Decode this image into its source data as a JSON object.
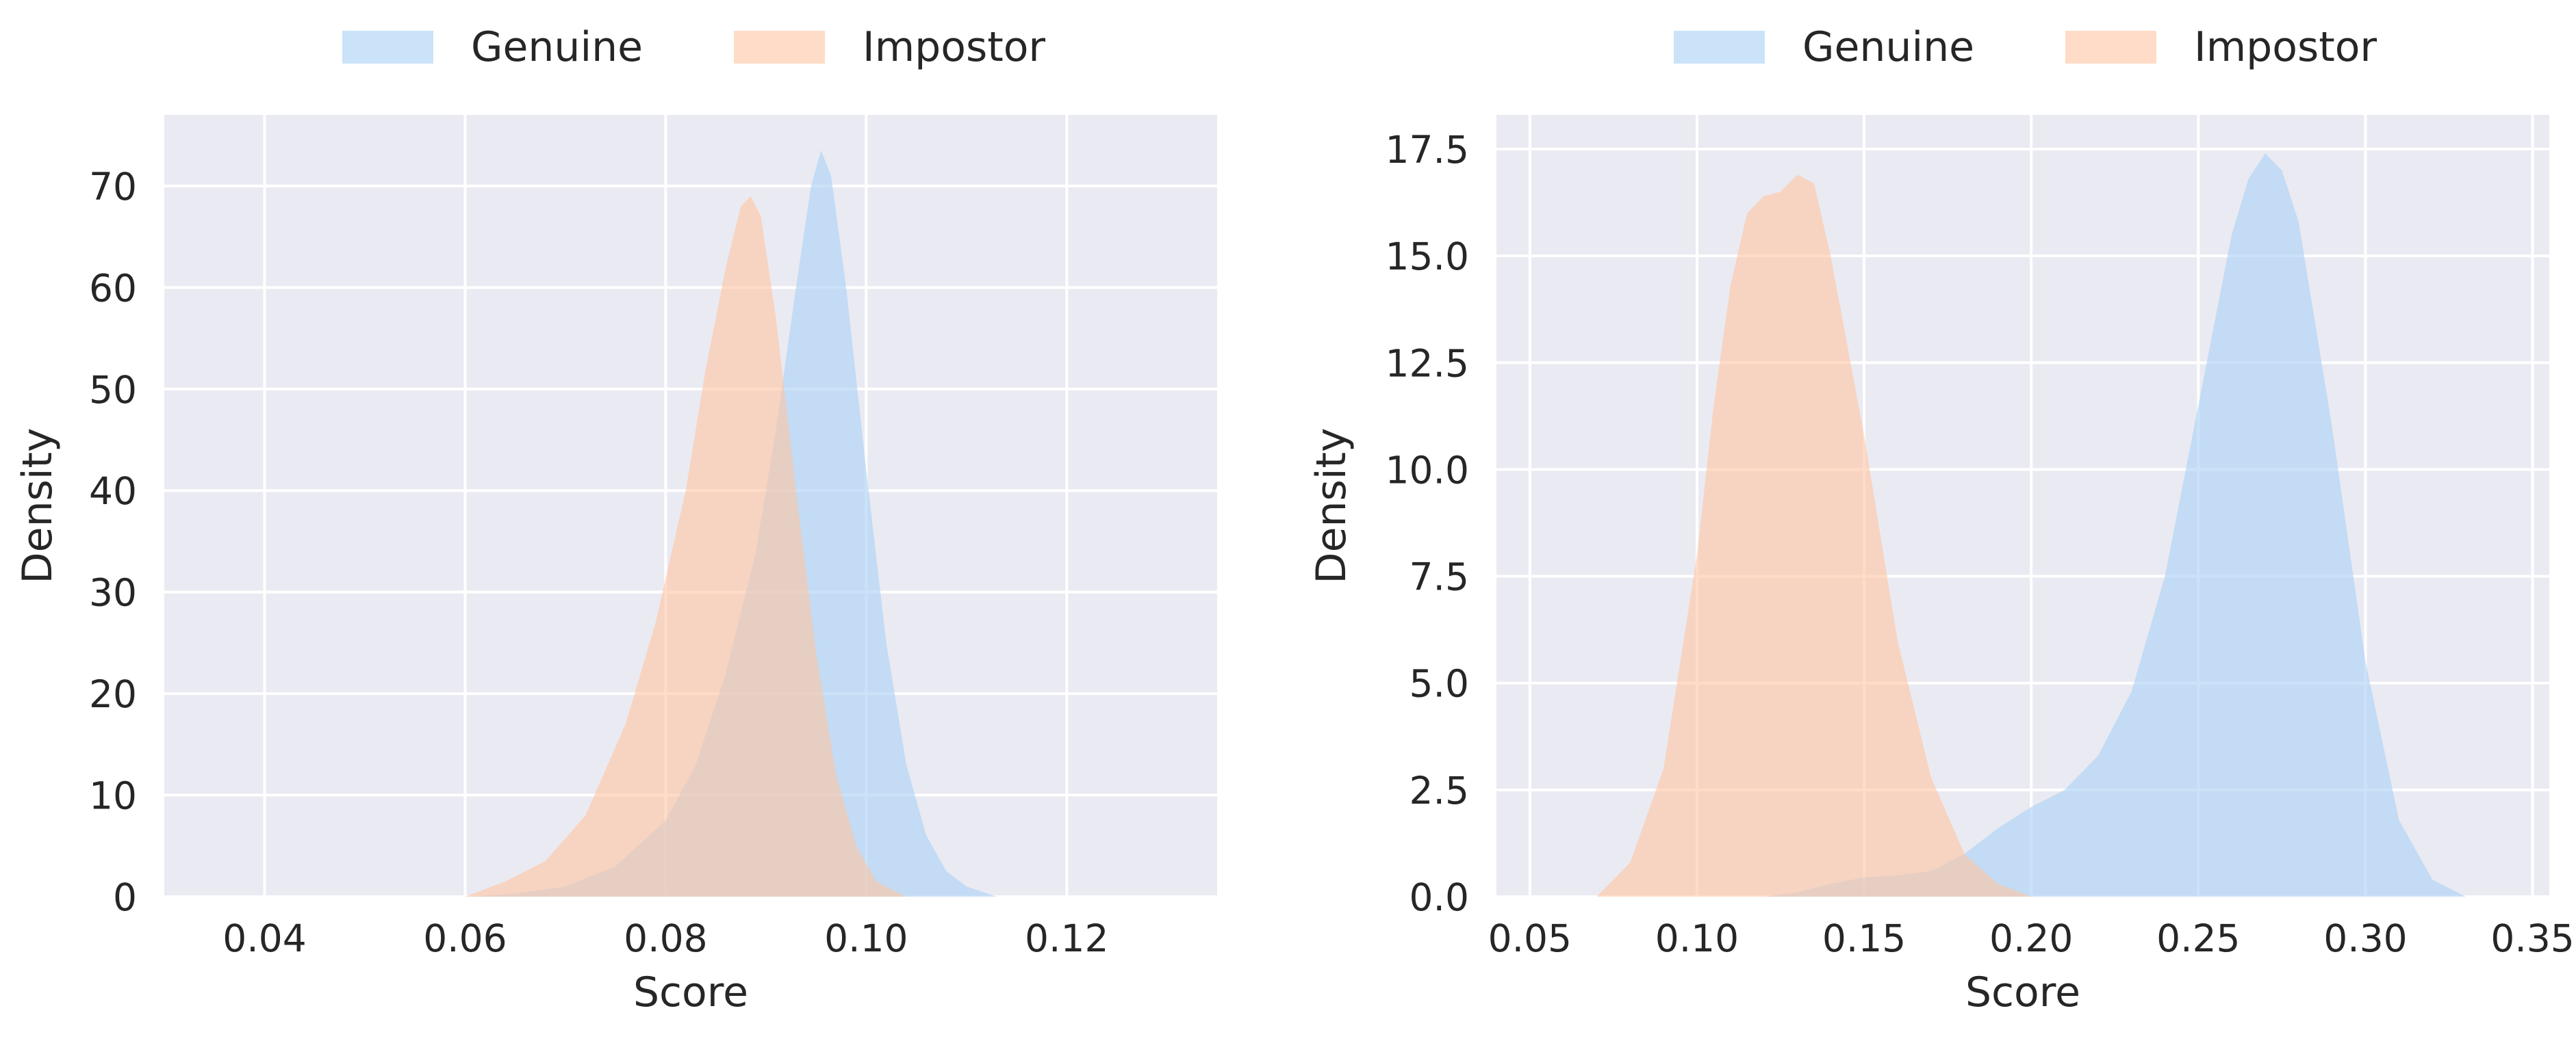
{
  "chart_data": [
    {
      "type": "area",
      "xlabel": "Score",
      "ylabel": "Density",
      "xlim": [
        0.03,
        0.135
      ],
      "ylim": [
        0,
        77
      ],
      "xticks": [
        0.04,
        0.06,
        0.08,
        0.1,
        0.12
      ],
      "xtick_labels": [
        "0.04",
        "0.06",
        "0.08",
        "0.10",
        "0.12"
      ],
      "yticks": [
        0,
        10,
        20,
        30,
        40,
        50,
        60,
        70
      ],
      "ytick_labels": [
        "0",
        "10",
        "20",
        "30",
        "40",
        "50",
        "60",
        "70"
      ],
      "grid": true,
      "legend_position": "top-center",
      "series": [
        {
          "name": "Genuine",
          "color": "#a8d0f5",
          "x": [
            0.06,
            0.065,
            0.07,
            0.075,
            0.08,
            0.083,
            0.086,
            0.089,
            0.091,
            0.093,
            0.0945,
            0.0955,
            0.0965,
            0.098,
            0.1,
            0.102,
            0.104,
            0.106,
            0.108,
            0.11,
            0.113
          ],
          "y": [
            0,
            0.3,
            1,
            3,
            7.5,
            13,
            22,
            34,
            46,
            60,
            70,
            73.5,
            71,
            60,
            42,
            25,
            13,
            6,
            2.5,
            1,
            0
          ]
        },
        {
          "name": "Impostor",
          "color": "#ffc4a2",
          "x": [
            0.06,
            0.064,
            0.068,
            0.072,
            0.076,
            0.079,
            0.082,
            0.084,
            0.086,
            0.0875,
            0.0885,
            0.0895,
            0.091,
            0.093,
            0.095,
            0.097,
            0.099,
            0.101,
            0.104
          ],
          "y": [
            0,
            1.5,
            3.5,
            8,
            17,
            27,
            40,
            52,
            62,
            68,
            69,
            67,
            57,
            40,
            24,
            12,
            5,
            1.5,
            0
          ]
        }
      ]
    },
    {
      "type": "area",
      "xlabel": "Score",
      "ylabel": "Density",
      "xlim": [
        0.04,
        0.355
      ],
      "ylim": [
        0,
        18.3
      ],
      "xticks": [
        0.05,
        0.1,
        0.15,
        0.2,
        0.25,
        0.3,
        0.35
      ],
      "xtick_labels": [
        "0.05",
        "0.10",
        "0.15",
        "0.20",
        "0.25",
        "0.30",
        "0.35"
      ],
      "yticks": [
        0,
        2.5,
        5,
        7.5,
        10,
        12.5,
        15,
        17.5
      ],
      "ytick_labels": [
        "0.0",
        "2.5",
        "5.0",
        "7.5",
        "10.0",
        "12.5",
        "15.0",
        "17.5"
      ],
      "grid": true,
      "legend_position": "top-center",
      "series": [
        {
          "name": "Genuine",
          "color": "#a8d0f5",
          "x": [
            0.12,
            0.13,
            0.14,
            0.15,
            0.16,
            0.17,
            0.18,
            0.19,
            0.2,
            0.21,
            0.22,
            0.23,
            0.24,
            0.25,
            0.26,
            0.265,
            0.27,
            0.275,
            0.28,
            0.29,
            0.3,
            0.31,
            0.32,
            0.33
          ],
          "y": [
            0,
            0.1,
            0.3,
            0.45,
            0.5,
            0.6,
            1.0,
            1.6,
            2.1,
            2.5,
            3.3,
            4.8,
            7.5,
            11.5,
            15.5,
            16.8,
            17.4,
            17.0,
            15.8,
            11.0,
            5.5,
            1.8,
            0.4,
            0
          ]
        },
        {
          "name": "Impostor",
          "color": "#ffc4a2",
          "x": [
            0.07,
            0.08,
            0.09,
            0.1,
            0.105,
            0.11,
            0.115,
            0.12,
            0.125,
            0.13,
            0.135,
            0.14,
            0.15,
            0.16,
            0.17,
            0.18,
            0.19,
            0.2
          ],
          "y": [
            0,
            0.8,
            3.0,
            8.0,
            11.5,
            14.3,
            16.0,
            16.4,
            16.5,
            16.9,
            16.7,
            15.0,
            10.8,
            6.0,
            2.8,
            1.0,
            0.3,
            0
          ]
        }
      ]
    }
  ]
}
